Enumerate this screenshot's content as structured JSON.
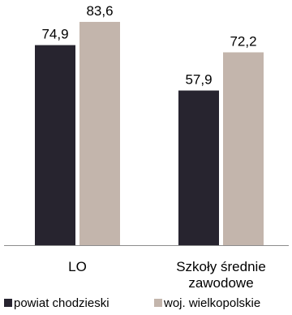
{
  "chart_data": {
    "type": "bar",
    "categories": [
      [
        "LO"
      ],
      [
        "Szkoły średnie",
        "zawodowe"
      ]
    ],
    "series": [
      {
        "name": "powiat chodzieski",
        "values": [
          74.9,
          57.9
        ],
        "labels": [
          "74,9",
          "57,9"
        ],
        "color": "#27242f"
      },
      {
        "name": "woj. wielkopolskie",
        "values": [
          83.6,
          72.2
        ],
        "labels": [
          "83,6",
          "72,2"
        ],
        "color": "#c3b5ac"
      }
    ],
    "ylim": [
      0,
      100
    ],
    "grid": false,
    "legend": "bottom",
    "axis_color": "#8c8c8c"
  }
}
